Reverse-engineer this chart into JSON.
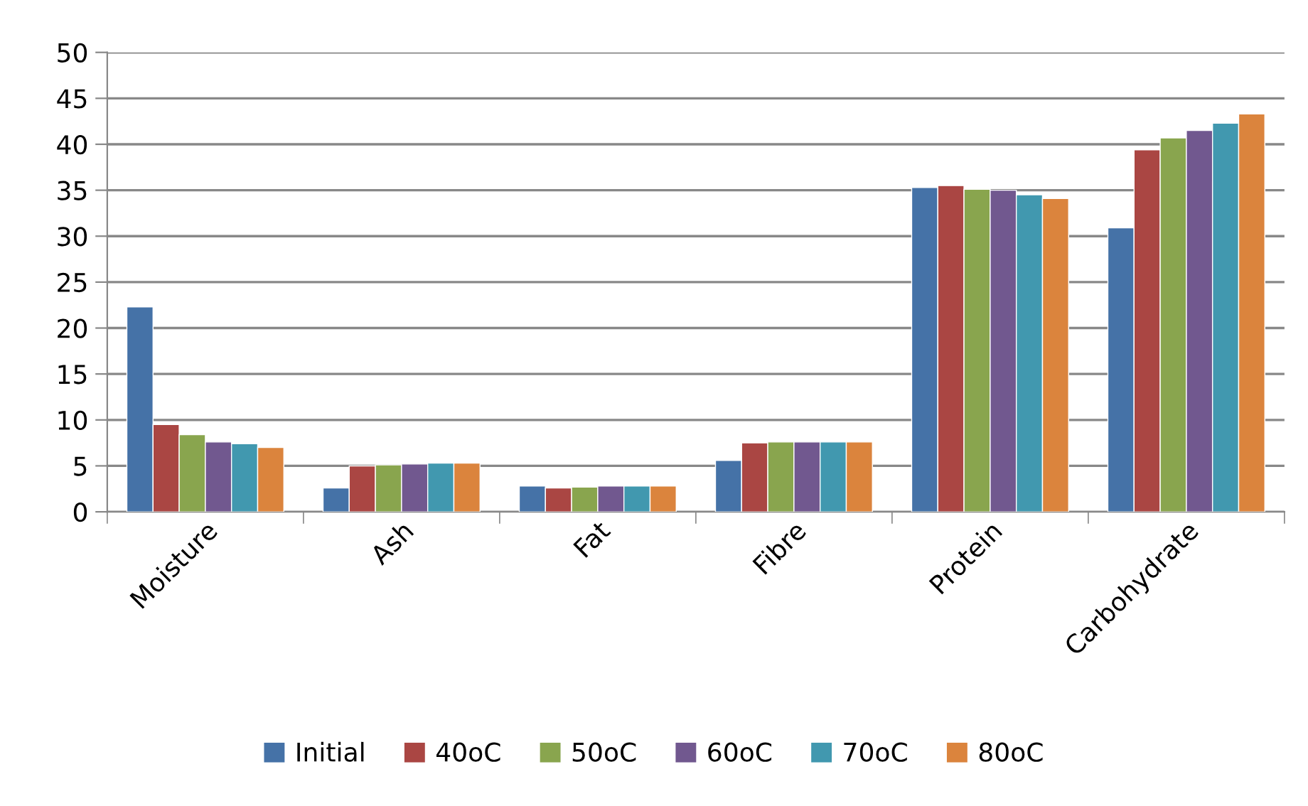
{
  "chart_data": {
    "type": "bar",
    "categories": [
      "Moisture",
      "Ash",
      "Fat",
      "Fibre",
      "Protein",
      "Carbohydrate"
    ],
    "series": [
      {
        "name": "Initial",
        "color": "#4572a7",
        "values": [
          22.3,
          2.6,
          2.8,
          5.6,
          35.3,
          30.9
        ]
      },
      {
        "name": "40oC",
        "color": "#aa4643",
        "values": [
          9.5,
          5.0,
          2.6,
          7.5,
          35.5,
          39.4
        ]
      },
      {
        "name": "50oC",
        "color": "#89a54e",
        "values": [
          8.4,
          5.1,
          2.7,
          7.6,
          35.1,
          40.7
        ]
      },
      {
        "name": "60oC",
        "color": "#71588f",
        "values": [
          7.6,
          5.2,
          2.8,
          7.6,
          35.0,
          41.5
        ]
      },
      {
        "name": "70oC",
        "color": "#4198af",
        "values": [
          7.4,
          5.3,
          2.8,
          7.6,
          34.5,
          42.3
        ]
      },
      {
        "name": "80oC",
        "color": "#db843d",
        "values": [
          7.0,
          5.3,
          2.8,
          7.6,
          34.1,
          43.3
        ]
      }
    ],
    "ylim": [
      0,
      50
    ],
    "yticks": [
      0,
      5,
      10,
      15,
      20,
      25,
      30,
      35,
      40,
      45,
      50
    ],
    "grid": "y",
    "legend": "bottom"
  }
}
